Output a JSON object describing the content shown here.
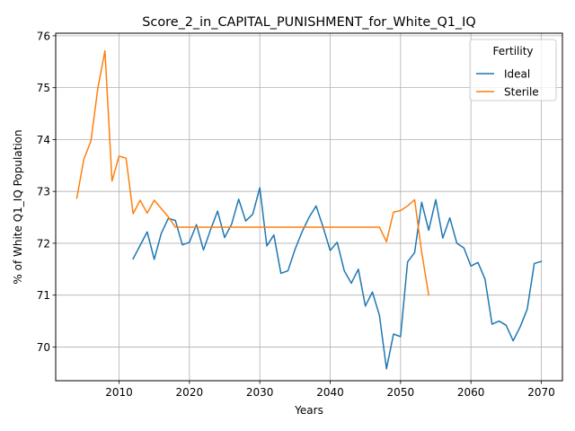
{
  "chart_data": {
    "type": "line",
    "title": "Score_2_in_CAPITAL_PUNISHMENT_for_White_Q1_IQ",
    "xlabel": "Years",
    "ylabel": "% of White Q1_IQ Population",
    "xlim": [
      2001,
      2073
    ],
    "ylim": [
      69.35,
      76.05
    ],
    "xticks": [
      2010,
      2020,
      2030,
      2040,
      2050,
      2060,
      2070
    ],
    "yticks": [
      70,
      71,
      72,
      73,
      74,
      75,
      76
    ],
    "grid": true,
    "legend": {
      "title": "Fertility",
      "placement": "top-right"
    },
    "series": [
      {
        "name": "Ideal",
        "color": "#1f77b4",
        "x": [
          2012,
          2013,
          2014,
          2015,
          2016,
          2017,
          2018,
          2019,
          2020,
          2021,
          2022,
          2023,
          2024,
          2025,
          2026,
          2027,
          2028,
          2029,
          2030,
          2031,
          2032,
          2033,
          2034,
          2035,
          2036,
          2037,
          2038,
          2039,
          2040,
          2041,
          2042,
          2043,
          2044,
          2045,
          2046,
          2047,
          2048,
          2049,
          2050,
          2051,
          2052,
          2053,
          2054,
          2055,
          2056,
          2057,
          2058,
          2059,
          2060,
          2061,
          2062,
          2063,
          2064,
          2065,
          2066,
          2067,
          2068,
          2069,
          2070
        ],
        "y": [
          71.7,
          71.96,
          72.22,
          71.69,
          72.19,
          72.48,
          72.44,
          71.97,
          72.02,
          72.36,
          71.87,
          72.26,
          72.62,
          72.11,
          72.37,
          72.85,
          72.43,
          72.56,
          73.07,
          71.95,
          72.16,
          71.42,
          71.47,
          71.88,
          72.22,
          72.5,
          72.72,
          72.31,
          71.86,
          72.02,
          71.47,
          71.23,
          71.5,
          70.79,
          71.06,
          70.61,
          69.58,
          70.25,
          70.2,
          71.64,
          71.82,
          72.79,
          72.25,
          72.84,
          72.1,
          72.49,
          72.0,
          71.91,
          71.56,
          71.63,
          71.31,
          70.44,
          70.5,
          70.42,
          70.12,
          70.39,
          70.73,
          71.61,
          71.65
        ]
      },
      {
        "name": "Sterile",
        "color": "#ff7f0e",
        "x": [
          2004,
          2005,
          2006,
          2007,
          2008,
          2009,
          2010,
          2011,
          2012,
          2013,
          2014,
          2015,
          2016,
          2017,
          2018,
          2019,
          2020,
          2021,
          2022,
          2023,
          2024,
          2025,
          2026,
          2027,
          2028,
          2029,
          2030,
          2031,
          2032,
          2033,
          2034,
          2035,
          2036,
          2037,
          2038,
          2039,
          2040,
          2041,
          2042,
          2043,
          2044,
          2045,
          2046,
          2047,
          2048,
          2049,
          2050,
          2051,
          2052,
          2053,
          2054
        ],
        "y": [
          72.87,
          73.62,
          73.97,
          75.0,
          75.71,
          73.2,
          73.68,
          73.64,
          72.57,
          72.83,
          72.58,
          72.83,
          72.67,
          72.51,
          72.31,
          72.31,
          72.31,
          72.31,
          72.31,
          72.31,
          72.31,
          72.31,
          72.31,
          72.31,
          72.31,
          72.31,
          72.31,
          72.31,
          72.31,
          72.31,
          72.31,
          72.31,
          72.31,
          72.31,
          72.31,
          72.31,
          72.31,
          72.31,
          72.31,
          72.31,
          72.31,
          72.31,
          72.31,
          72.31,
          72.03,
          72.6,
          72.63,
          72.72,
          72.84,
          71.83,
          71.0
        ]
      }
    ]
  }
}
